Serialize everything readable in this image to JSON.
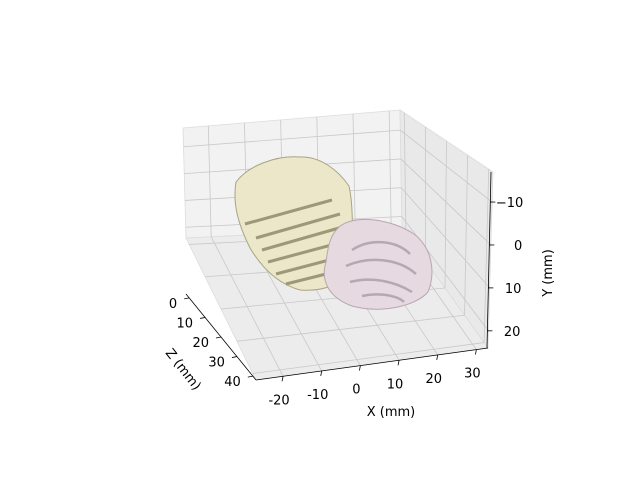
{
  "chart_data": {
    "type": "3d-voxel",
    "title": "",
    "xlabel": "X (mm)",
    "ylabel": "Y (mm)",
    "zlabel": "Z (mm)",
    "x_ticks": [
      -20,
      -10,
      0,
      10,
      20,
      30
    ],
    "y_ticks": [
      -10,
      0,
      10,
      20
    ],
    "z_ticks": [
      0,
      10,
      20,
      30,
      40
    ],
    "xlim": [
      -27,
      33
    ],
    "ylim": [
      -17,
      24
    ],
    "zlim": [
      -2,
      42
    ],
    "y_axis_inverted": true,
    "grid": true,
    "series": [
      {
        "color": "#e8e4c4",
        "shade": "#9c9878"
      },
      {
        "color": "#e4d6de",
        "shade": "#b8a6b2"
      }
    ]
  }
}
